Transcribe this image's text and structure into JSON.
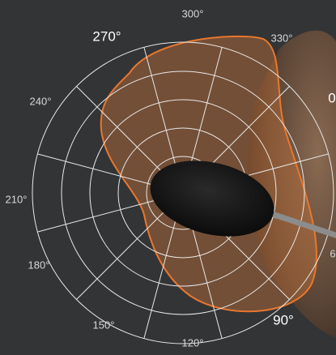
{
  "labels": {
    "a300": "300°",
    "a270": "270°",
    "a330": "330°",
    "a240": "240°",
    "a0": "0",
    "a210": "210°",
    "a180": "180°",
    "a60": "6",
    "a150": "150°",
    "a120": "120°",
    "a90": "90°"
  }
}
